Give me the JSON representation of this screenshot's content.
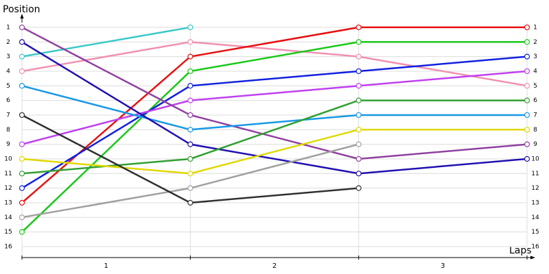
{
  "chart_data": {
    "type": "line",
    "y_title": "Position",
    "x_title": "Laps",
    "x": [
      0,
      1,
      2,
      3
    ],
    "xlim": [
      0,
      3
    ],
    "xticks": [
      {
        "value": 0.5,
        "label": "1"
      },
      {
        "value": 1.5,
        "label": "2"
      },
      {
        "value": 2.5,
        "label": "3"
      }
    ],
    "ylim": [
      16.75,
      0.3
    ],
    "yticks": [
      1,
      2,
      3,
      4,
      5,
      6,
      7,
      8,
      9,
      10,
      11,
      12,
      13,
      14,
      15,
      16
    ],
    "grid": true,
    "series": [
      {
        "color": "#3cc8c8",
        "values": [
          3,
          1,
          null,
          null
        ]
      },
      {
        "color": "#f090b0",
        "values": [
          4,
          2,
          3,
          5
        ]
      },
      {
        "color": "#e81010",
        "values": [
          13,
          3,
          1,
          1
        ]
      },
      {
        "color": "#18c818",
        "values": [
          15,
          4,
          2,
          2
        ]
      },
      {
        "color": "#1020e0",
        "values": [
          12,
          5,
          4,
          3
        ]
      },
      {
        "color": "#c040f0",
        "values": [
          9,
          6,
          5,
          4
        ]
      },
      {
        "color": "#9040a0",
        "values": [
          1,
          7,
          10,
          9
        ]
      },
      {
        "color": "#1898e8",
        "values": [
          5,
          8,
          7,
          7
        ]
      },
      {
        "color": "#2010b0",
        "values": [
          2,
          9,
          11,
          10
        ]
      },
      {
        "color": "#30a030",
        "values": [
          11,
          10,
          6,
          6
        ]
      },
      {
        "color": "#e0d800",
        "values": [
          10,
          11,
          8,
          8
        ]
      },
      {
        "color": "#a0a0a0",
        "values": [
          14,
          12,
          9,
          null
        ]
      },
      {
        "color": "#303030",
        "values": [
          7,
          13,
          12,
          null
        ]
      }
    ]
  }
}
